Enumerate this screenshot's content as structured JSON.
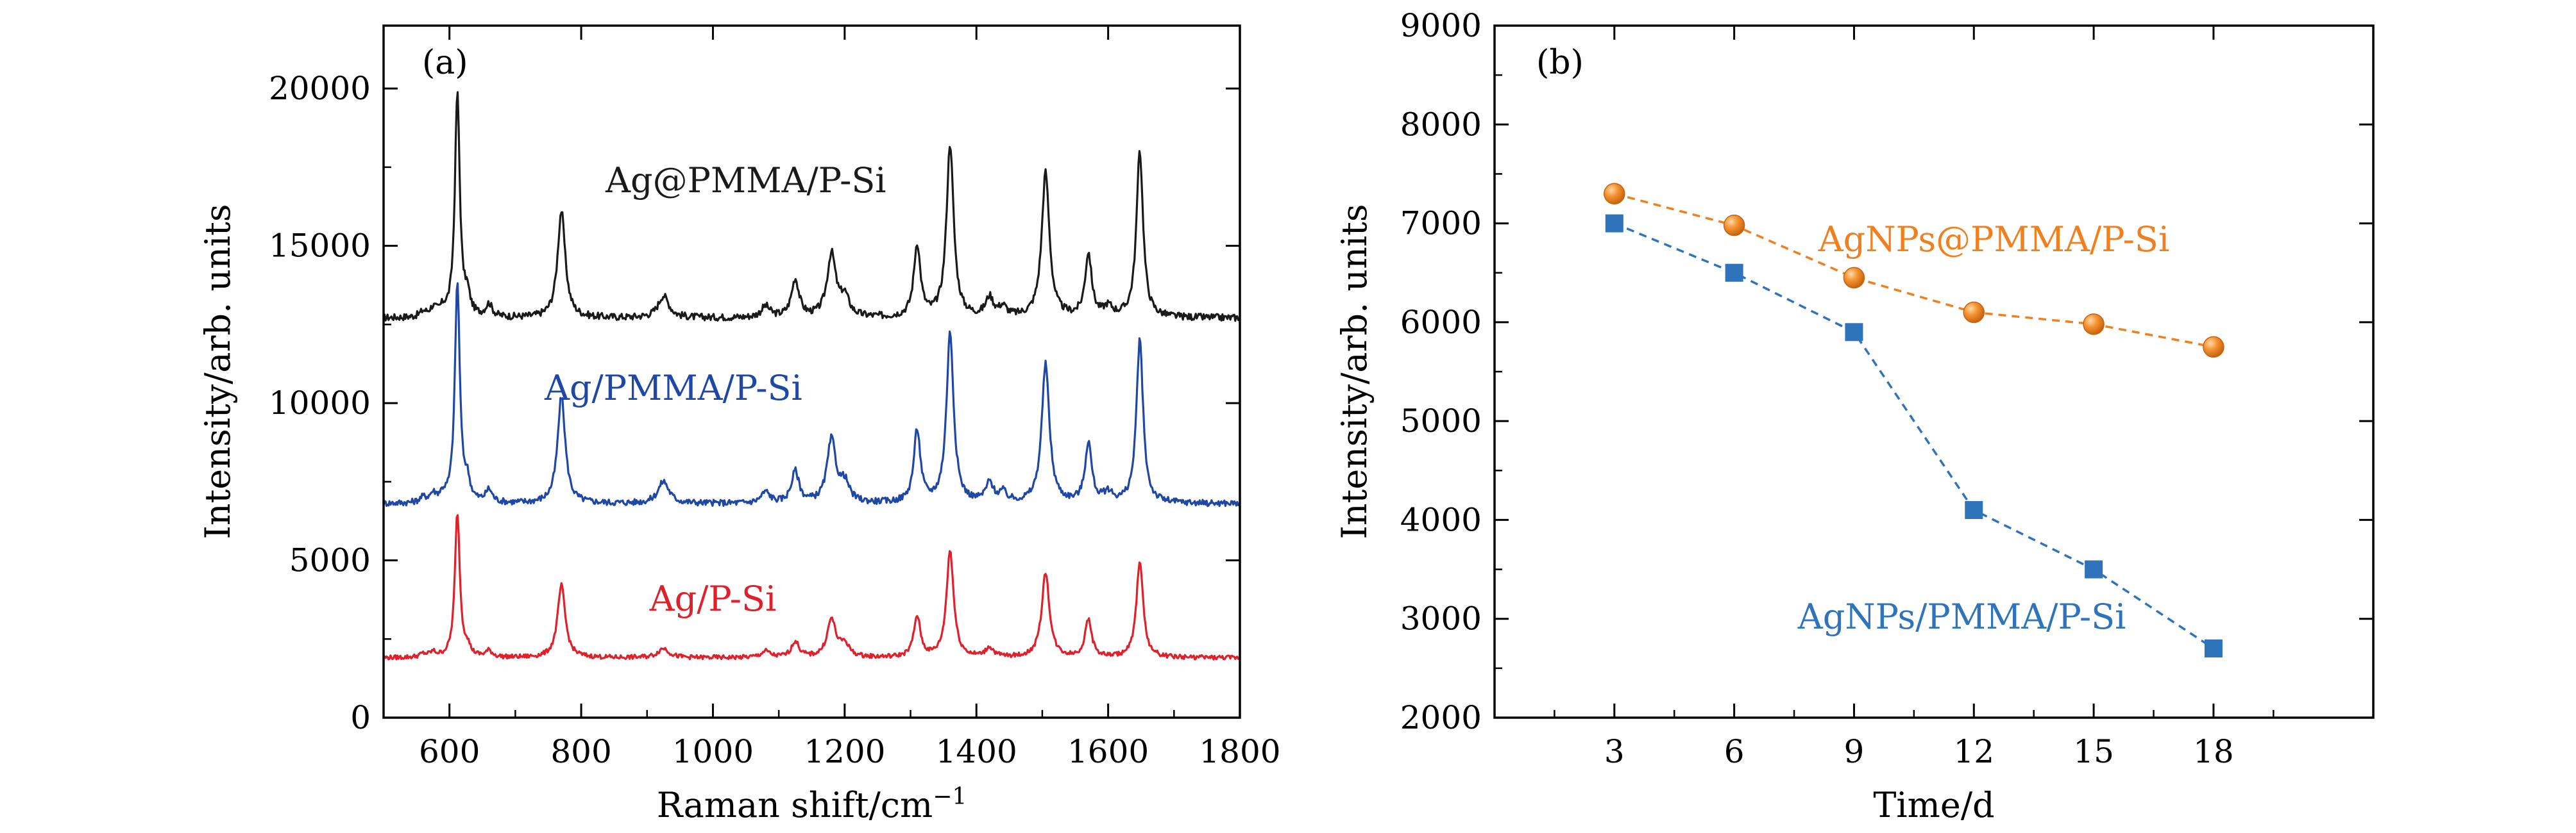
{
  "chart_data": [
    {
      "type": "line",
      "panel_label": "(a)",
      "xlabel_main": "Raman shift/cm",
      "xlabel_sup": "−1",
      "ylabel": "Intensity/arb. units",
      "xlim": [
        500,
        1800
      ],
      "ylim": [
        0,
        22000
      ],
      "xticks": [
        600,
        800,
        1000,
        1200,
        1400,
        1600,
        1800
      ],
      "yticks": [
        0,
        5000,
        10000,
        15000,
        20000
      ],
      "grid": false,
      "series": [
        {
          "name": "Ag@PMMA/P-Si",
          "color": "#1a1a1a",
          "label_color": "#1a1a1a",
          "baseline": 12700,
          "peaks": [
            [
              560,
              150,
              6
            ],
            [
              575,
              250,
              6
            ],
            [
              590,
              200,
              6
            ],
            [
              612,
              7100,
              4.5
            ],
            [
              627,
              600,
              5
            ],
            [
              660,
              400,
              6
            ],
            [
              770,
              3400,
              7
            ],
            [
              925,
              700,
              10
            ],
            [
              1080,
              350,
              8
            ],
            [
              1125,
              1200,
              7
            ],
            [
              1180,
              2000,
              8
            ],
            [
              1200,
              600,
              8
            ],
            [
              1310,
              2300,
              6
            ],
            [
              1360,
              5500,
              6.5
            ],
            [
              1420,
              600,
              7
            ],
            [
              1440,
              300,
              7
            ],
            [
              1505,
              4600,
              7
            ],
            [
              1570,
              2000,
              6
            ],
            [
              1600,
              300,
              8
            ],
            [
              1648,
              5300,
              6
            ]
          ],
          "noise": 110
        },
        {
          "name": "Ag/PMMA/P-Si",
          "color": "#1f48a6",
          "label_color": "#1f48a6",
          "baseline": 6800,
          "peaks": [
            [
              560,
              150,
              6
            ],
            [
              575,
              250,
              6
            ],
            [
              590,
              200,
              6
            ],
            [
              612,
              7000,
              4.5
            ],
            [
              627,
              600,
              5
            ],
            [
              660,
              400,
              6
            ],
            [
              770,
              3400,
              7
            ],
            [
              925,
              700,
              10
            ],
            [
              1080,
              350,
              8
            ],
            [
              1125,
              1000,
              7
            ],
            [
              1180,
              2000,
              8
            ],
            [
              1200,
              600,
              8
            ],
            [
              1310,
              2300,
              6
            ],
            [
              1360,
              5400,
              6.5
            ],
            [
              1420,
              600,
              7
            ],
            [
              1440,
              300,
              7
            ],
            [
              1505,
              4400,
              7
            ],
            [
              1570,
              1900,
              6
            ],
            [
              1600,
              300,
              8
            ],
            [
              1648,
              5200,
              6
            ]
          ],
          "noise": 100
        },
        {
          "name": "Ag/P-Si",
          "color": "#e0202a",
          "label_color": "#e0202a",
          "baseline": 1900,
          "peaks": [
            [
              560,
              100,
              6
            ],
            [
              575,
              150,
              6
            ],
            [
              612,
              4600,
              4.5
            ],
            [
              627,
              300,
              5
            ],
            [
              660,
              200,
              6
            ],
            [
              770,
              2300,
              7
            ],
            [
              925,
              300,
              10
            ],
            [
              1080,
              200,
              8
            ],
            [
              1125,
              500,
              7
            ],
            [
              1180,
              1200,
              8
            ],
            [
              1200,
              400,
              8
            ],
            [
              1310,
              1300,
              6
            ],
            [
              1360,
              3400,
              6.5
            ],
            [
              1420,
              300,
              7
            ],
            [
              1505,
              2700,
              7
            ],
            [
              1570,
              1200,
              6
            ],
            [
              1648,
              3100,
              6
            ]
          ],
          "noise": 70
        }
      ]
    },
    {
      "type": "line",
      "panel_label": "(b)",
      "xlabel": "Time/d",
      "ylabel": "Intensity/arb. units",
      "xlim": [
        0,
        22
      ],
      "ylim": [
        2000,
        9000
      ],
      "xticks": [
        3,
        6,
        9,
        12,
        15,
        18
      ],
      "yticks": [
        2000,
        3000,
        4000,
        5000,
        6000,
        7000,
        8000,
        9000
      ],
      "grid": false,
      "x": [
        3,
        6,
        9,
        12,
        15,
        18
      ],
      "series": [
        {
          "name": "AgNPs@PMMA/P-Si",
          "marker": "circle",
          "color": "#f07f1e",
          "values": [
            7300,
            6980,
            6450,
            6100,
            5980,
            5750
          ]
        },
        {
          "name": "AgNPs/PMMA/P-Si",
          "marker": "square",
          "color": "#2f73ba",
          "values": [
            7000,
            6500,
            5900,
            4100,
            3500,
            2700
          ]
        }
      ]
    }
  ]
}
